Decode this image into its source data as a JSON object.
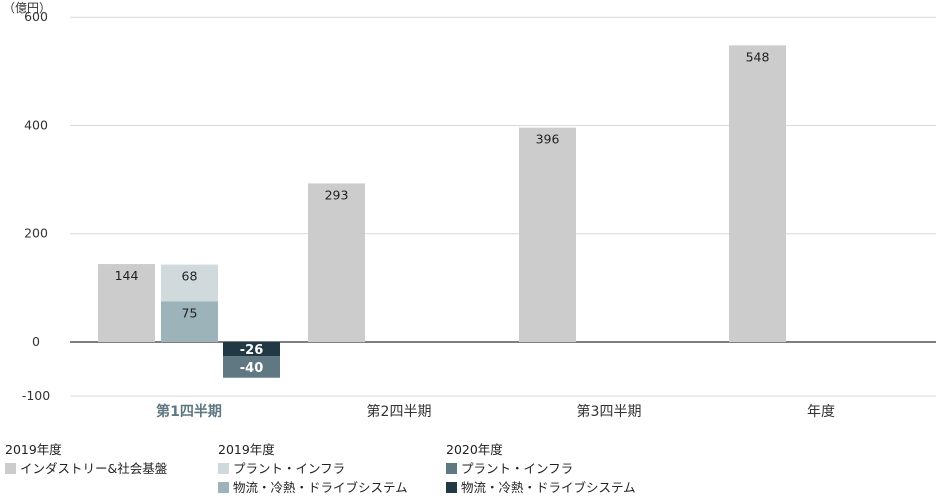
{
  "chart_data": {
    "type": "bar",
    "unit_label": "（億円）",
    "y_ticks": [
      600,
      400,
      200,
      0,
      -100
    ],
    "ylim": [
      -100,
      600
    ],
    "categories": [
      "第1四半期",
      "第2四半期",
      "第3四半期",
      "年度"
    ],
    "highlight_category": "第1四半期",
    "series": [
      {
        "name": "インダストリー&社会基盤",
        "group": "2019年度",
        "color": "#cccccc",
        "values": [
          144,
          293,
          396,
          548
        ]
      },
      {
        "name": "プラント・インフラ",
        "group": "2019年度",
        "color": "#d0dadd",
        "values": [
          68,
          null,
          null,
          null
        ]
      },
      {
        "name": "物流・冷熱・ドライブシステム",
        "group": "2019年度",
        "color": "#9bb3b9",
        "values": [
          75,
          null,
          null,
          null
        ]
      },
      {
        "name": "プラント・インフラ",
        "group": "2020年度",
        "color": "#5f7882",
        "values": [
          -40,
          null,
          null,
          null
        ]
      },
      {
        "name": "物流・冷熱・ドライブシステム",
        "group": "2020年度",
        "color": "#223845",
        "values": [
          -26,
          null,
          null,
          null
        ]
      }
    ],
    "value_labels": [
      {
        "series": 0,
        "category": 0,
        "text": "144"
      },
      {
        "series": 0,
        "category": 1,
        "text": "293"
      },
      {
        "series": 0,
        "category": 2,
        "text": "396"
      },
      {
        "series": 0,
        "category": 3,
        "text": "548"
      },
      {
        "series": 1,
        "category": 0,
        "text": "68"
      },
      {
        "series": 2,
        "category": 0,
        "text": "75"
      },
      {
        "series": 4,
        "category": 0,
        "text": "-26"
      },
      {
        "series": 3,
        "category": 0,
        "text": "-40"
      }
    ],
    "colors": {
      "grid": "#d9d9d9",
      "zero_axis": "#333333",
      "category_highlight": "#5f7882",
      "category_default": "#333333",
      "label_dark_bg": "#ffffff"
    }
  },
  "legend": {
    "groups": [
      {
        "title": "2019年度",
        "items": [
          {
            "label": "インダストリー&社会基盤",
            "color": "#cccccc"
          }
        ]
      },
      {
        "title": "2019年度",
        "items": [
          {
            "label": "プラント・インフラ",
            "color": "#d0dadd"
          },
          {
            "label": "物流・冷熱・ドライブシステム",
            "color": "#9bb3b9"
          }
        ]
      },
      {
        "title": "2020年度",
        "items": [
          {
            "label": "プラント・インフラ",
            "color": "#5f7882"
          },
          {
            "label": "物流・冷熱・ドライブシステム",
            "color": "#223845"
          }
        ]
      }
    ]
  }
}
